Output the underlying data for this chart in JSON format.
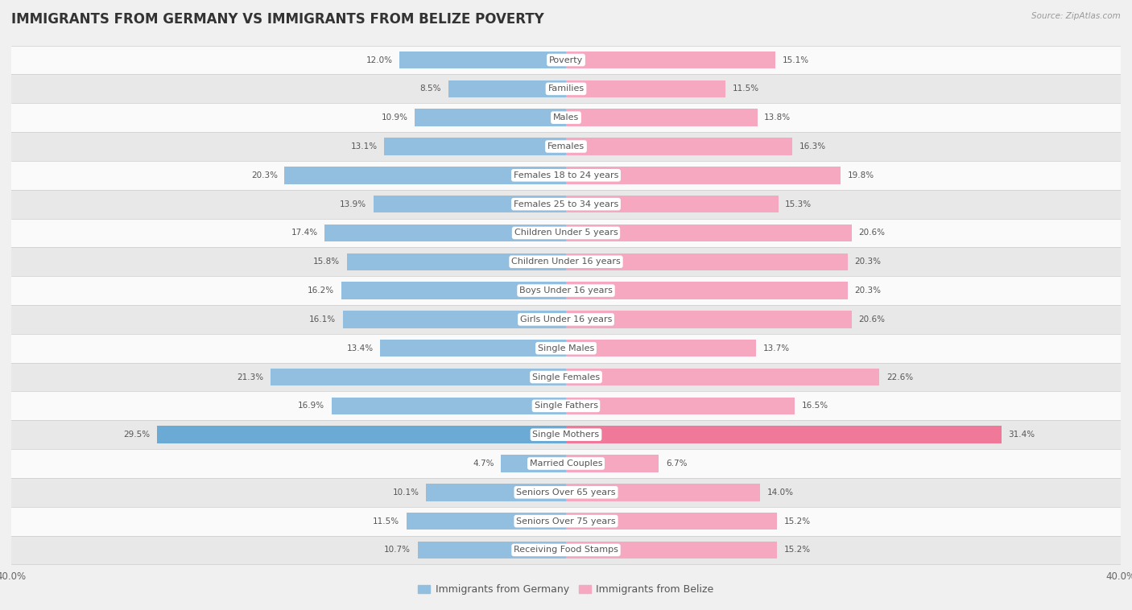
{
  "title": "IMMIGRANTS FROM GERMANY VS IMMIGRANTS FROM BELIZE POVERTY",
  "source": "Source: ZipAtlas.com",
  "categories": [
    "Poverty",
    "Families",
    "Males",
    "Females",
    "Females 18 to 24 years",
    "Females 25 to 34 years",
    "Children Under 5 years",
    "Children Under 16 years",
    "Boys Under 16 years",
    "Girls Under 16 years",
    "Single Males",
    "Single Females",
    "Single Fathers",
    "Single Mothers",
    "Married Couples",
    "Seniors Over 65 years",
    "Seniors Over 75 years",
    "Receiving Food Stamps"
  ],
  "germany_values": [
    12.0,
    8.5,
    10.9,
    13.1,
    20.3,
    13.9,
    17.4,
    15.8,
    16.2,
    16.1,
    13.4,
    21.3,
    16.9,
    29.5,
    4.7,
    10.1,
    11.5,
    10.7
  ],
  "belize_values": [
    15.1,
    11.5,
    13.8,
    16.3,
    19.8,
    15.3,
    20.6,
    20.3,
    20.3,
    20.6,
    13.7,
    22.6,
    16.5,
    31.4,
    6.7,
    14.0,
    15.2,
    15.2
  ],
  "germany_color": "#92bfdf",
  "belize_color": "#f5a8c0",
  "germany_highlight_color": "#6aaad4",
  "belize_highlight_color": "#f07898",
  "bar_height": 0.6,
  "xlim": 40.0,
  "background_color": "#f0f0f0",
  "row_light_color": "#fafafa",
  "row_dark_color": "#e8e8e8",
  "title_fontsize": 12,
  "label_fontsize": 8,
  "value_fontsize": 7.5,
  "legend_fontsize": 9
}
